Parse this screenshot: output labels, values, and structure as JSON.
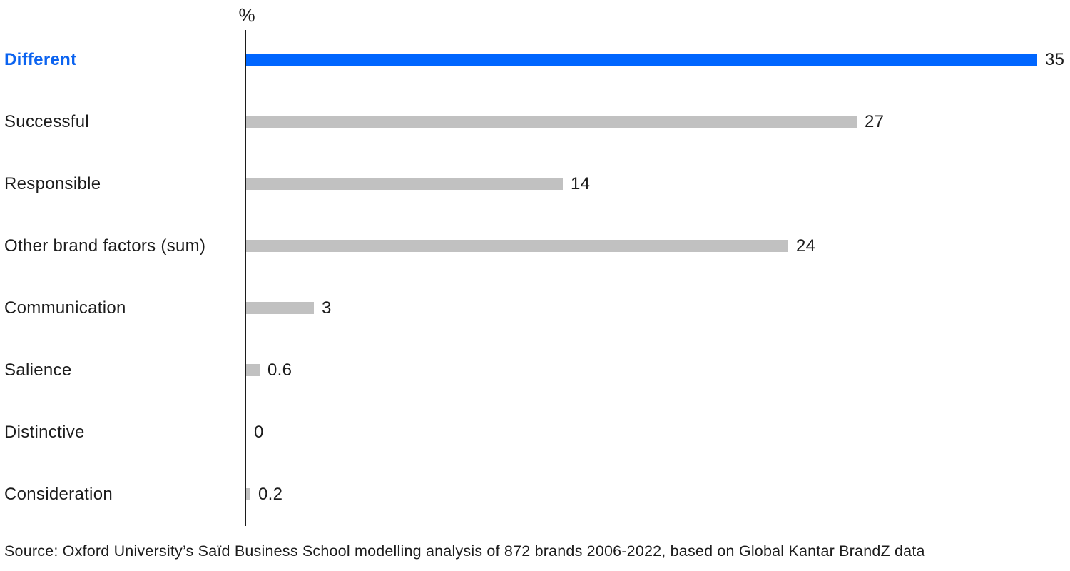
{
  "chart_data": {
    "type": "bar",
    "orientation": "horizontal",
    "title": "",
    "unit_label": "%",
    "categories": [
      "Different",
      "Successful",
      "Responsible",
      "Other brand factors (sum)",
      "Communication",
      "Salience",
      "Distinctive",
      "Consideration"
    ],
    "values": [
      35,
      27,
      14,
      24,
      3,
      0.6,
      0,
      0.2
    ],
    "value_labels": [
      "35",
      "27",
      "14",
      "24",
      "3",
      "0.6",
      "0",
      "0.2"
    ],
    "highlight_index": 0,
    "xlim": [
      0,
      35
    ],
    "grid": false,
    "legend": false,
    "colors": {
      "highlight_bar": "#0066ff",
      "highlight_label": "#0b63f0",
      "bar": "#c1c1c1",
      "text": "#1c1c1c",
      "axis": "#1c1c1c"
    }
  },
  "footer": {
    "source": "Source: Oxford University’s Saïd Business School modelling analysis of 872 brands 2006-2022, based on Global Kantar BrandZ data"
  }
}
